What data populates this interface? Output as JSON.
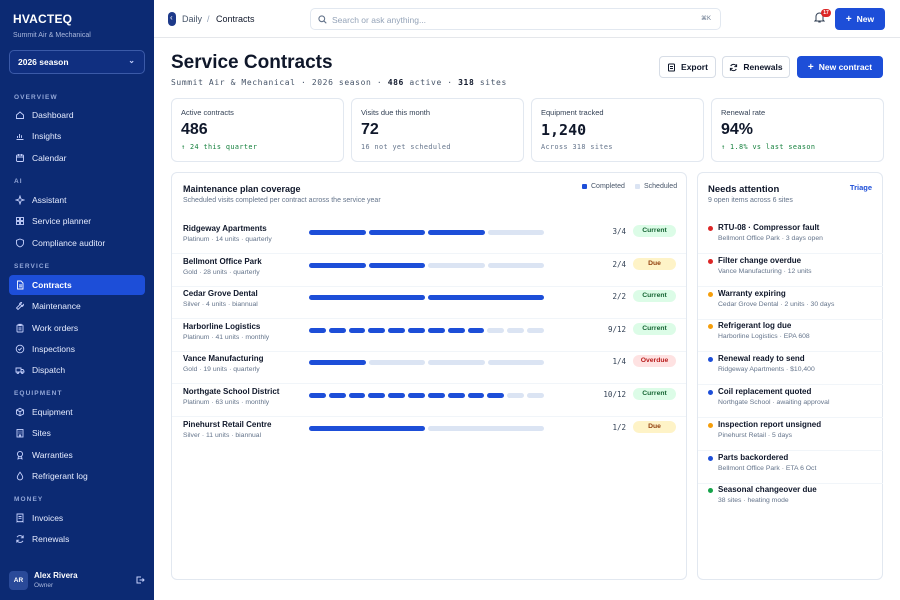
{
  "brand": {
    "name": "HVACTEQ",
    "org": "Summit Air & Mechanical",
    "season": "2026 season"
  },
  "nav": {
    "overview_label": "OVERVIEW",
    "overview": [
      {
        "label": "Dashboard",
        "icon": "home-icon"
      },
      {
        "label": "Insights",
        "icon": "chart-icon"
      },
      {
        "label": "Calendar",
        "icon": "calendar-icon"
      }
    ],
    "ai_label": "AI",
    "ai": [
      {
        "label": "Assistant",
        "icon": "sparkle-icon"
      },
      {
        "label": "Service planner",
        "icon": "grid-icon"
      },
      {
        "label": "Compliance auditor",
        "icon": "shield-icon"
      }
    ],
    "service_label": "SERVICE",
    "service": [
      {
        "label": "Contracts",
        "icon": "file-icon",
        "active": true
      },
      {
        "label": "Maintenance",
        "icon": "wrench-icon"
      },
      {
        "label": "Work orders",
        "icon": "clipboard-icon"
      },
      {
        "label": "Inspections",
        "icon": "check-circle-icon"
      },
      {
        "label": "Dispatch",
        "icon": "truck-icon"
      }
    ],
    "equipment_label": "EQUIPMENT",
    "equipment": [
      {
        "label": "Equipment",
        "icon": "box-icon"
      },
      {
        "label": "Sites",
        "icon": "building-icon"
      },
      {
        "label": "Warranties",
        "icon": "badge-icon"
      },
      {
        "label": "Refrigerant log",
        "icon": "drop-icon"
      }
    ],
    "money_label": "MONEY",
    "money": [
      {
        "label": "Invoices",
        "icon": "receipt-icon"
      },
      {
        "label": "Renewals",
        "icon": "refresh-icon"
      }
    ]
  },
  "user": {
    "initials": "AR",
    "name": "Alex Rivera",
    "role": "Owner"
  },
  "topbar": {
    "breadcrumb": [
      "Daily",
      "Contracts"
    ],
    "search_placeholder": "Search or ask anything...",
    "search_shortcut": "⌘K",
    "notifications": "17",
    "new_label": "New"
  },
  "header": {
    "title": "Service Contracts",
    "subtitle_org": "Summit Air & Mechanical",
    "subtitle_season": "2026 season",
    "active_count": "486",
    "active_word": "active",
    "sites_count": "318",
    "sites_word": "sites",
    "export_label": "Export",
    "renewals_label": "Renewals",
    "new_contract_label": "New contract"
  },
  "stats": [
    {
      "label": "Active contracts",
      "value": "486",
      "note": "↑ 24 this quarter",
      "note_color": "green"
    },
    {
      "label": "Visits due this month",
      "value": "72",
      "note": "16 not yet scheduled",
      "note_color": "gray"
    },
    {
      "label": "Equipment tracked",
      "value": "1,240",
      "note": "Across 318 sites",
      "note_color": "gray"
    },
    {
      "label": "Renewal rate",
      "value": "94%",
      "note": "↑ 1.8% vs last season",
      "note_color": "green"
    }
  ],
  "coverage": {
    "title": "Maintenance plan coverage",
    "subtitle": "Scheduled visits completed per contract across the service year",
    "legend_completed": "Completed",
    "legend_scheduled": "Scheduled",
    "colors": {
      "completed": "#1d4ed8",
      "scheduled": "#dbe4f3"
    },
    "rows": [
      {
        "name": "Ridgeway Apartments",
        "meta": "Platinum · 14 units · quarterly",
        "completed": 3,
        "total": 4,
        "count": "3/4",
        "status": "Current"
      },
      {
        "name": "Bellmont Office Park",
        "meta": "Gold · 28 units · quarterly",
        "completed": 2,
        "total": 4,
        "count": "2/4",
        "status": "Due"
      },
      {
        "name": "Cedar Grove Dental",
        "meta": "Silver · 4 units · biannual",
        "completed": 2,
        "total": 2,
        "count": "2/2",
        "status": "Current"
      },
      {
        "name": "Harborline Logistics",
        "meta": "Platinum · 41 units · monthly",
        "completed": 9,
        "total": 12,
        "count": "9/12",
        "status": "Current"
      },
      {
        "name": "Vance Manufacturing",
        "meta": "Gold · 19 units · quarterly",
        "completed": 1,
        "total": 4,
        "count": "1/4",
        "status": "Overdue"
      },
      {
        "name": "Northgate School District",
        "meta": "Platinum · 63 units · monthly",
        "completed": 10,
        "total": 12,
        "count": "10/12",
        "status": "Current"
      },
      {
        "name": "Pinehurst Retail Centre",
        "meta": "Silver · 11 units · biannual",
        "completed": 1,
        "total": 2,
        "count": "1/2",
        "status": "Due"
      }
    ]
  },
  "attention": {
    "title": "Needs attention",
    "subtitle": "9 open items across 6 sites",
    "link": "Triage",
    "items": [
      {
        "title": "RTU-08 · Compressor fault",
        "meta": "Bellmont Office Park · 3 days open",
        "color": "#dc2626"
      },
      {
        "title": "Filter change overdue",
        "meta": "Vance Manufacturing · 12 units",
        "color": "#dc2626"
      },
      {
        "title": "Warranty expiring",
        "meta": "Cedar Grove Dental · 2 units · 30 days",
        "color": "#f59e0b"
      },
      {
        "title": "Refrigerant log due",
        "meta": "Harborline Logistics · EPA 608",
        "color": "#f59e0b"
      },
      {
        "title": "Renewal ready to send",
        "meta": "Ridgeway Apartments · $10,400",
        "color": "#1d4ed8"
      },
      {
        "title": "Coil replacement quoted",
        "meta": "Northgate School · awaiting approval",
        "color": "#1d4ed8"
      },
      {
        "title": "Inspection report unsigned",
        "meta": "Pinehurst Retail · 5 days",
        "color": "#f59e0b"
      },
      {
        "title": "Parts backordered",
        "meta": "Bellmont Office Park · ETA 6 Oct",
        "color": "#1d4ed8"
      },
      {
        "title": "Seasonal changeover due",
        "meta": "38 sites · heating mode",
        "color": "#16a34a"
      }
    ]
  }
}
